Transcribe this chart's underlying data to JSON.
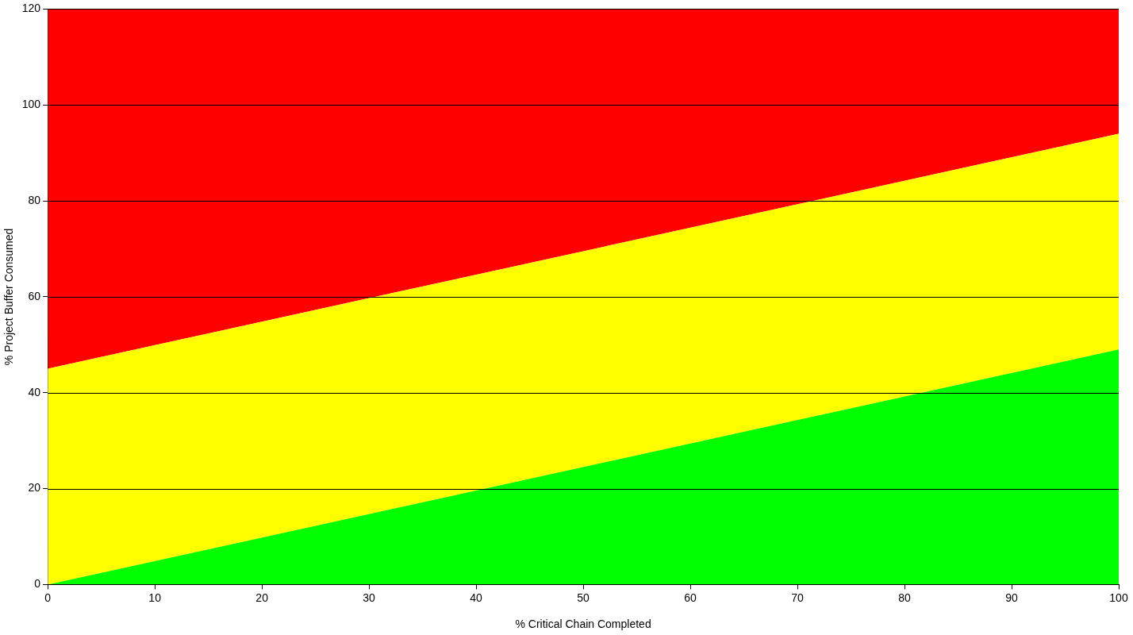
{
  "chart_data": {
    "type": "area",
    "stacked": true,
    "xlabel": "% Critical Chain Completed",
    "ylabel": "% Project Buffer Consumed",
    "x": [
      0,
      100
    ],
    "series": [
      {
        "color": "#00ff00",
        "values": [
          0,
          49
        ]
      },
      {
        "color": "#ffff00",
        "values": [
          45,
          45
        ]
      },
      {
        "color": "#ff0000",
        "values": [
          75,
          26
        ]
      }
    ],
    "xlim": [
      0,
      100
    ],
    "xticks": [
      0,
      10,
      20,
      30,
      40,
      50,
      60,
      70,
      80,
      90,
      100
    ],
    "ylim": [
      0,
      120
    ],
    "yticks": [
      0,
      20,
      40,
      60,
      80,
      100,
      120
    ],
    "grid": "y",
    "legend": false
  }
}
